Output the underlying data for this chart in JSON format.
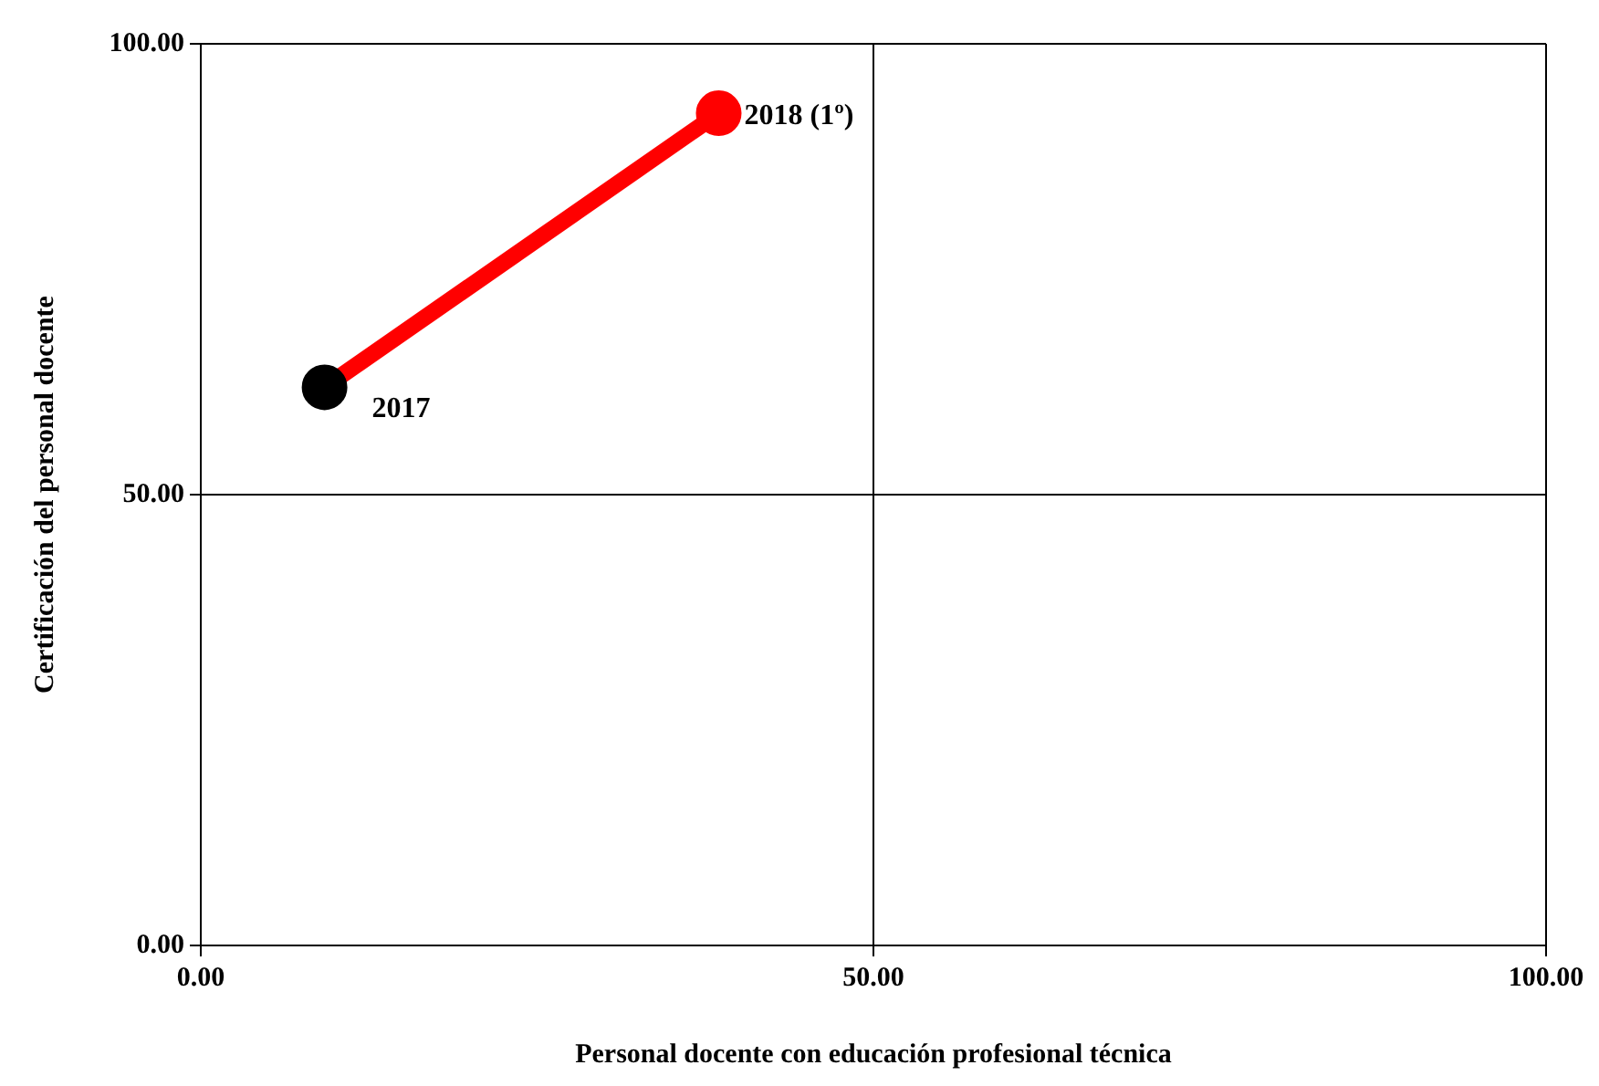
{
  "chart_data": {
    "type": "line",
    "xlabel": "Personal docente con educación profesional técnica",
    "ylabel": "Certificación del personal docente",
    "x": [
      9.2,
      38.5
    ],
    "series": [
      {
        "color": "#ff0000",
        "colors": [
          "#000000",
          "#ff0000"
        ],
        "values": [
          61.9,
          92.3
        ]
      }
    ],
    "xlim": [
      0,
      100
    ],
    "ylim": [
      0,
      100
    ],
    "xticks": [
      {
        "value": 0,
        "label": "0.00"
      },
      {
        "value": 50,
        "label": "50.00"
      },
      {
        "value": 100,
        "label": "100.00"
      }
    ],
    "yticks": [
      {
        "value": 0,
        "label": "0.00"
      },
      {
        "value": 50,
        "label": "50.00"
      },
      {
        "value": 100,
        "label": "100.00"
      }
    ],
    "grid": true,
    "marker": "circle",
    "line_style": "solid",
    "legend": false,
    "annotations": [
      {
        "text": "2017",
        "x": 9.2,
        "y": 61.9
      },
      {
        "text": "2018 (1º)",
        "x": 38.5,
        "y": 92.3
      }
    ]
  }
}
